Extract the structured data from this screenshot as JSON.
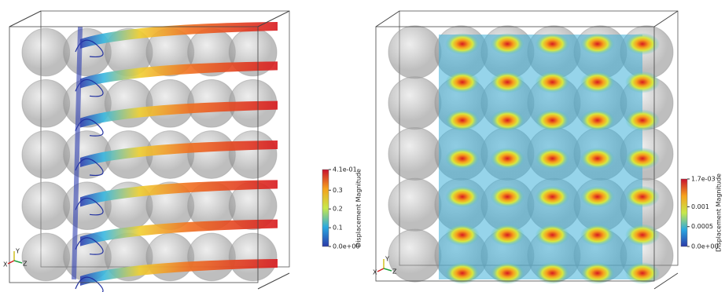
{
  "panels": [
    {
      "colorbar": {
        "title": "Displacement Magnitude",
        "range": [
          0,
          0.41
        ],
        "ticks": [
          {
            "value": 0.41,
            "label": "4.1e-01"
          },
          0.3,
          0.2,
          0.1,
          {
            "value": 0,
            "label": "0.0e+00"
          }
        ]
      },
      "axes": [
        "X",
        "Y",
        "Z"
      ]
    },
    {
      "colorbar": {
        "title": "Displacement Magnitude",
        "range": [
          0,
          0.0017
        ],
        "ticks": [
          {
            "value": 0.0017,
            "label": "1.7e-03"
          },
          0.001,
          0.0005,
          {
            "value": 0,
            "label": "0.0e+00"
          }
        ]
      },
      "axes": [
        "X",
        "Y",
        "Z"
      ]
    }
  ]
}
